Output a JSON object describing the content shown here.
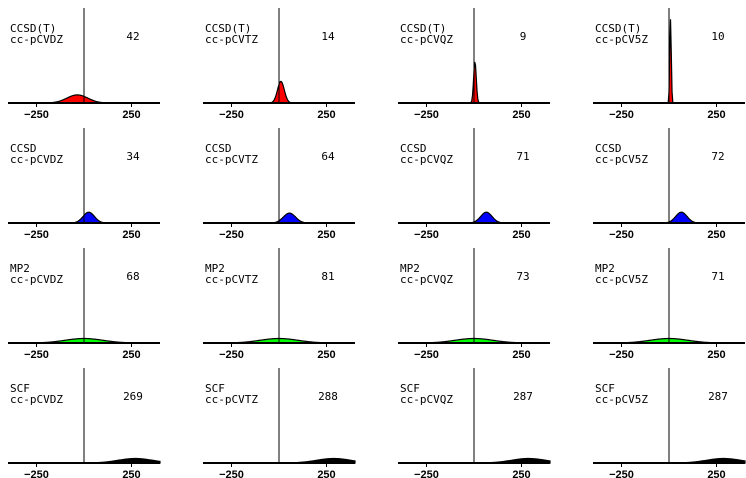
{
  "chart_data": {
    "type": "area",
    "xlim": [
      -400,
      400
    ],
    "ylim": [
      0,
      1
    ],
    "xticks": [
      -250,
      250
    ],
    "xtick_labels": [
      "−250",
      "250"
    ],
    "grid": false,
    "legend": "none",
    "layout": "4x4 small multiples",
    "colors": {
      "CCSD(T)": "#ff0000",
      "CCSD": "#0000ff",
      "MP2": "#00ff00",
      "SCF": "#000000"
    },
    "panels": [
      {
        "method": "CCSD(T)",
        "basis": "cc-pCVDZ",
        "value": "42",
        "center": -35,
        "sigma": 55,
        "height": 0.09
      },
      {
        "method": "CCSD(T)",
        "basis": "cc-pCVTZ",
        "value": "14",
        "center": 10,
        "sigma": 18,
        "height": 0.24
      },
      {
        "method": "CCSD(T)",
        "basis": "cc-pCVQZ",
        "value": "9",
        "center": 5,
        "sigma": 7,
        "height": 0.46
      },
      {
        "method": "CCSD(T)",
        "basis": "cc-pCV5Z",
        "value": "10",
        "center": 8,
        "sigma": 4,
        "height": 0.93
      },
      {
        "method": "CCSD",
        "basis": "cc-pCVDZ",
        "value": "34",
        "center": 25,
        "sigma": 30,
        "height": 0.12
      },
      {
        "method": "CCSD",
        "basis": "cc-pCVTZ",
        "value": "64",
        "center": 55,
        "sigma": 32,
        "height": 0.11
      },
      {
        "method": "CCSD",
        "basis": "cc-pCVQZ",
        "value": "71",
        "center": 65,
        "sigma": 30,
        "height": 0.12
      },
      {
        "method": "CCSD",
        "basis": "cc-pCV5Z",
        "value": "72",
        "center": 65,
        "sigma": 30,
        "height": 0.12
      },
      {
        "method": "MP2",
        "basis": "cc-pCVDZ",
        "value": "68",
        "center": 0,
        "sigma": 100,
        "height": 0.05
      },
      {
        "method": "MP2",
        "basis": "cc-pCVTZ",
        "value": "81",
        "center": 0,
        "sigma": 100,
        "height": 0.05
      },
      {
        "method": "MP2",
        "basis": "cc-pCVQZ",
        "value": "73",
        "center": 0,
        "sigma": 100,
        "height": 0.05
      },
      {
        "method": "MP2",
        "basis": "cc-pCV5Z",
        "value": "71",
        "center": 0,
        "sigma": 100,
        "height": 0.05
      },
      {
        "method": "SCF",
        "basis": "cc-pCVDZ",
        "value": "269",
        "center": 270,
        "sigma": 90,
        "height": 0.05
      },
      {
        "method": "SCF",
        "basis": "cc-pCVTZ",
        "value": "288",
        "center": 288,
        "sigma": 90,
        "height": 0.05
      },
      {
        "method": "SCF",
        "basis": "cc-pCVQZ",
        "value": "287",
        "center": 287,
        "sigma": 90,
        "height": 0.05
      },
      {
        "method": "SCF",
        "basis": "cc-pCV5Z",
        "value": "287",
        "center": 287,
        "sigma": 90,
        "height": 0.05
      }
    ]
  }
}
